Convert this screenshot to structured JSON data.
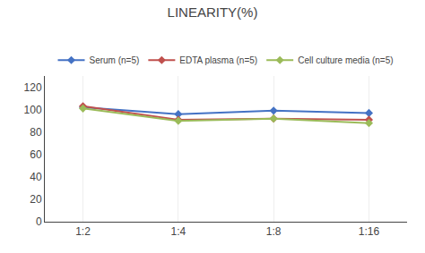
{
  "chart_data": {
    "type": "line",
    "title": "LINEARITY(%)",
    "categories": [
      "1:2",
      "1:4",
      "1:8",
      "1:16"
    ],
    "series": [
      {
        "name": "Serum (n=5)",
        "color": "#4472C4",
        "marker": "diamond",
        "values": [
          102,
          96,
          99,
          97
        ]
      },
      {
        "name": "EDTA plasma (n=5)",
        "color": "#C0504D",
        "marker": "diamond",
        "values": [
          103,
          91,
          92,
          91
        ]
      },
      {
        "name": "Cell culture media (n=5)",
        "color": "#9BBB59",
        "marker": "diamond",
        "values": [
          101,
          90,
          92,
          88
        ]
      }
    ],
    "ylim": [
      0,
      130
    ],
    "yticks": [
      0,
      20,
      40,
      60,
      80,
      100,
      120
    ],
    "grid": "x",
    "legend": "top"
  }
}
